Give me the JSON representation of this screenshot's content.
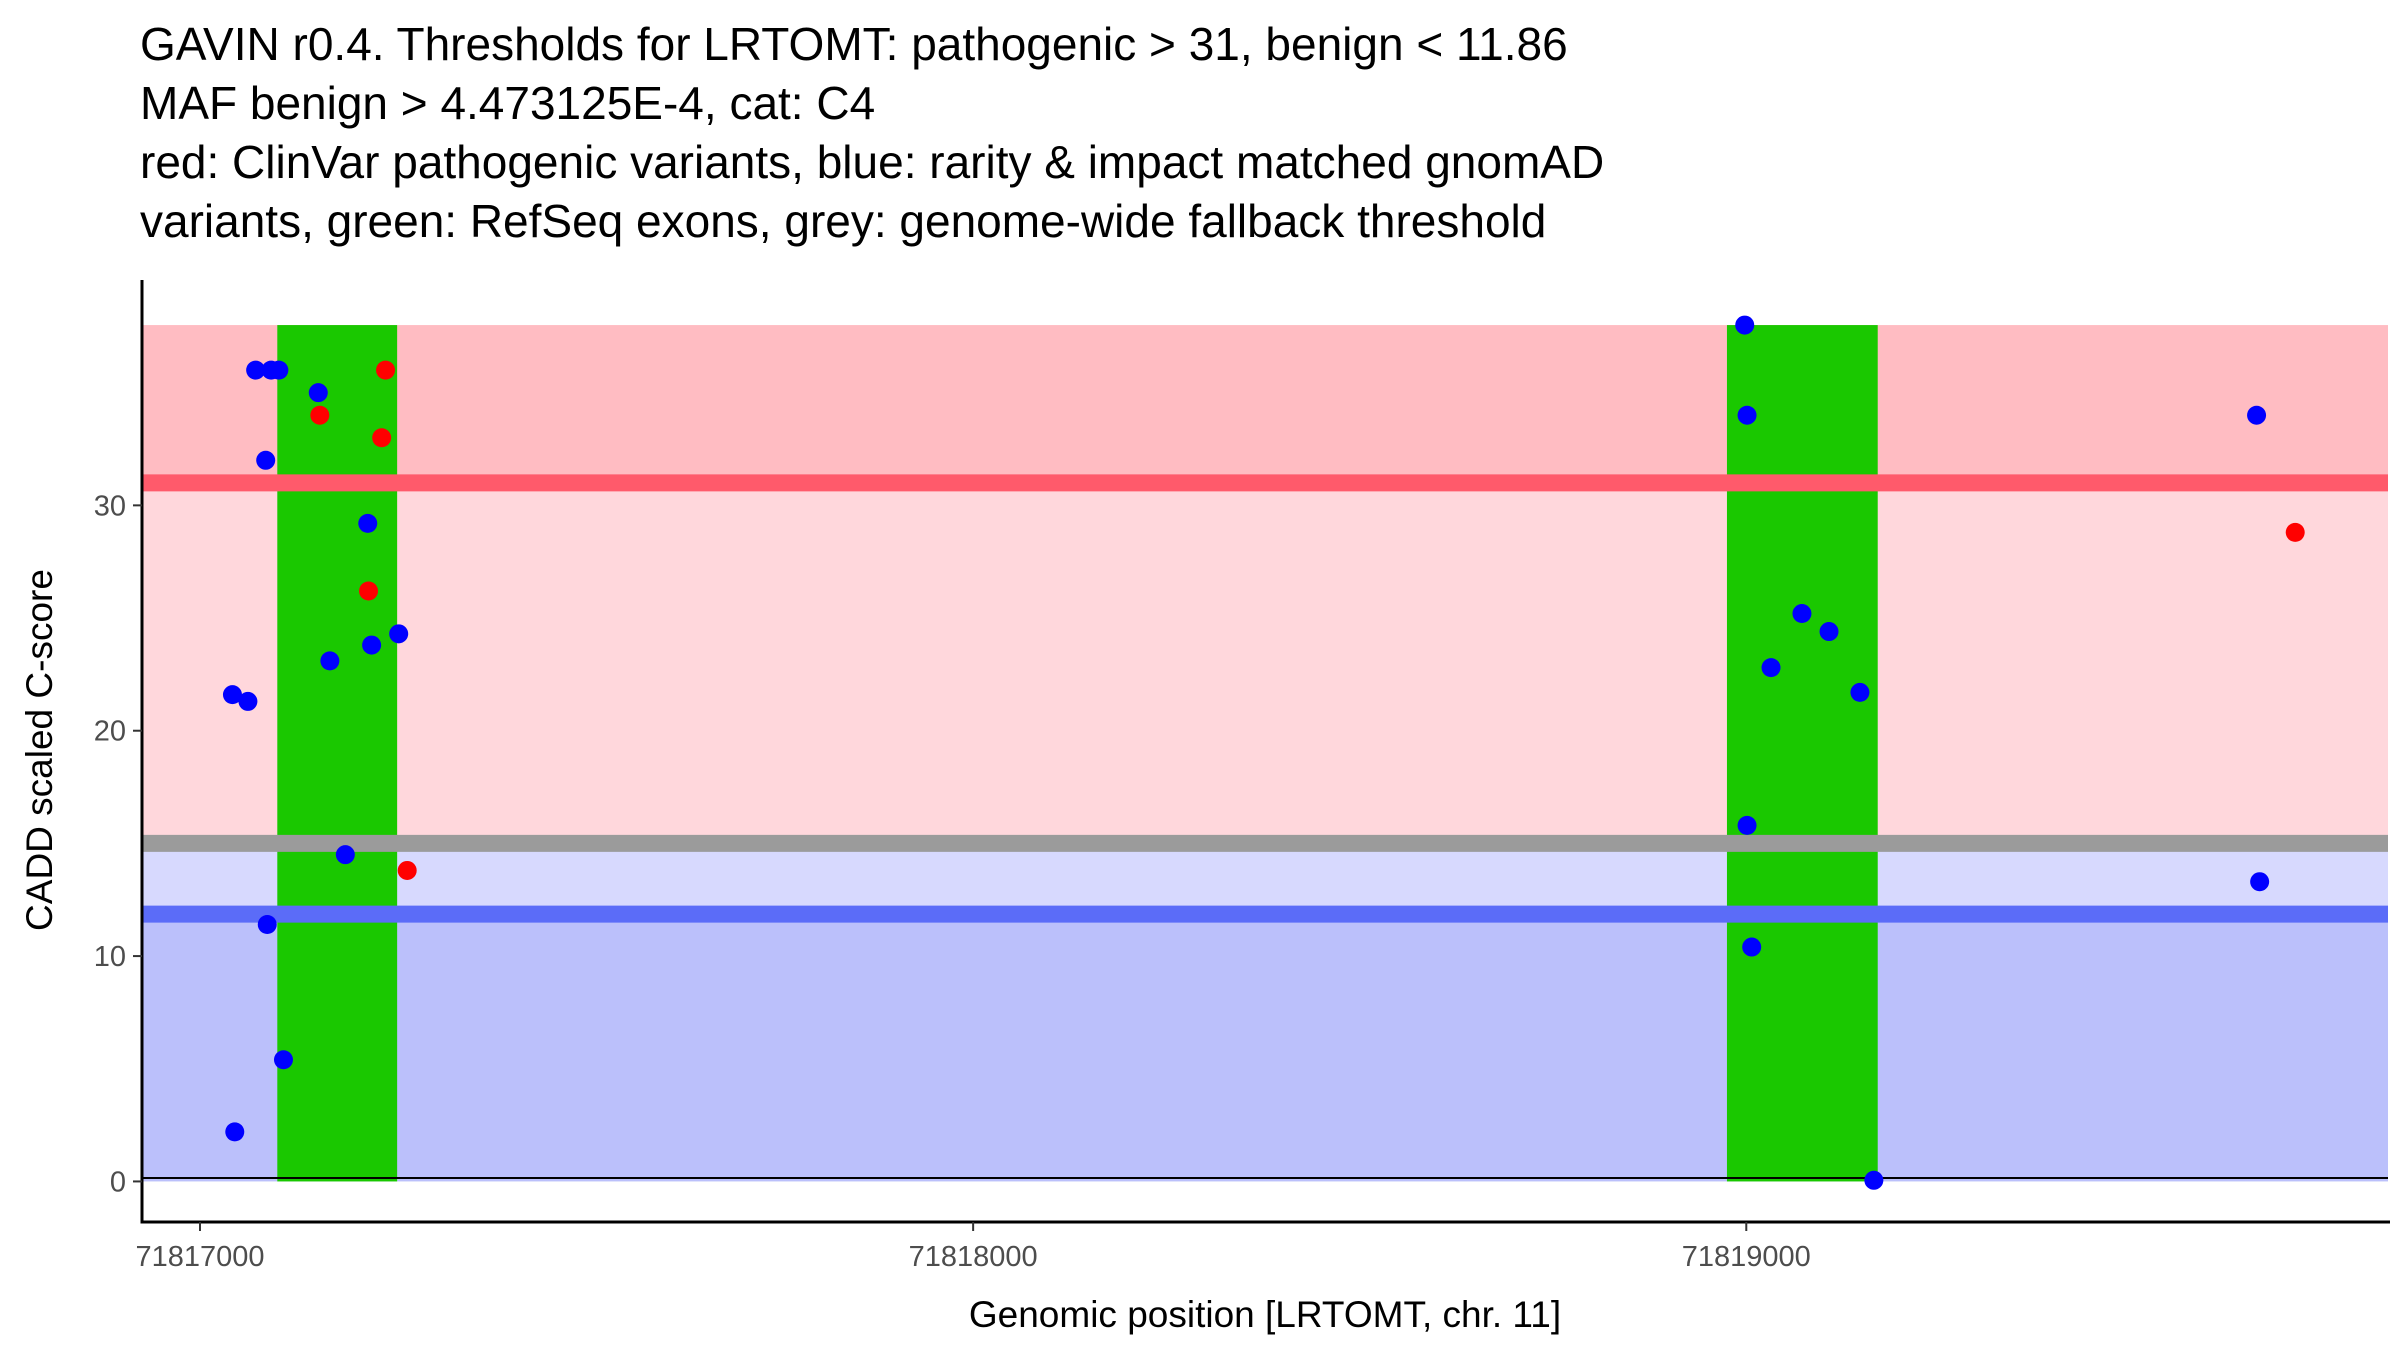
{
  "chart_data": {
    "type": "scatter",
    "title_lines": [
      "GAVIN r0.4. Thresholds for LRTOMT: pathogenic > 31, benign < 11.86",
      "MAF benign > 4.473125E-4, cat: C4",
      "red: ClinVar pathogenic variants, blue: rarity & impact matched gnomAD",
      "variants, green: RefSeq exons, grey: genome-wide fallback threshold"
    ],
    "xlabel": "Genomic position [LRTOMT, chr. 11]",
    "ylabel": "CADD scaled C-score",
    "xlim": [
      71816925,
      71819830
    ],
    "ylim": [
      -1.8,
      40.0
    ],
    "x_ticks": [
      71817000,
      71818000,
      71819000
    ],
    "x_tick_labels": [
      "71817000",
      "71818000",
      "71819000"
    ],
    "y_ticks": [
      0,
      10,
      20,
      30
    ],
    "y_tick_labels": [
      "0",
      "10",
      "20",
      "30"
    ],
    "thresholds": {
      "pathogenic": 31,
      "benign": 11.86,
      "fallback": 15,
      "max_score": 38,
      "maf_benign": "4.473125E-4",
      "category": "C4"
    },
    "shaded_regions": [
      {
        "name": "pathogenic-zone-dark",
        "y_from": 31,
        "y_to": 38,
        "color": "#ffbcc2"
      },
      {
        "name": "pathogenic-zone-light",
        "y_from": 15,
        "y_to": 31,
        "color": "#ffd7dc"
      },
      {
        "name": "vus-zone",
        "y_from": 11.86,
        "y_to": 15,
        "color": "#d7d9fe"
      },
      {
        "name": "benign-zone",
        "y_from": 0,
        "y_to": 11.86,
        "color": "#bbc0fb"
      }
    ],
    "threshold_lines": [
      {
        "name": "pathogenic-threshold-line",
        "y": 31,
        "color": "#ff5a6b"
      },
      {
        "name": "fallback-threshold-line",
        "y": 15,
        "color": "#9b9b9b"
      },
      {
        "name": "benign-threshold-line",
        "y": 11.86,
        "color": "#5b6cf8"
      }
    ],
    "exons": [
      {
        "start": 71817100,
        "end": 71817255
      },
      {
        "start": 71818975,
        "end": 71819170
      }
    ],
    "series": [
      {
        "name": "ClinVar pathogenic variants",
        "color": "#ff0000",
        "points": [
          {
            "x": 71817155,
            "y": 34.0
          },
          {
            "x": 71817240,
            "y": 36.0
          },
          {
            "x": 71817235,
            "y": 33.0
          },
          {
            "x": 71817218,
            "y": 26.2
          },
          {
            "x": 71817268,
            "y": 13.8
          },
          {
            "x": 71819710,
            "y": 28.8
          }
        ]
      },
      {
        "name": "gnomAD matched variants",
        "color": "#0000ff",
        "points": [
          {
            "x": 71817045,
            "y": 2.2
          },
          {
            "x": 71817042,
            "y": 21.6
          },
          {
            "x": 71817062,
            "y": 21.3
          },
          {
            "x": 71817072,
            "y": 36.0
          },
          {
            "x": 71817092,
            "y": 36.0
          },
          {
            "x": 71817102,
            "y": 36.0
          },
          {
            "x": 71817085,
            "y": 32.0
          },
          {
            "x": 71817087,
            "y": 11.4
          },
          {
            "x": 71817108,
            "y": 5.4
          },
          {
            "x": 71817153,
            "y": 35.0
          },
          {
            "x": 71817168,
            "y": 23.1
          },
          {
            "x": 71817188,
            "y": 14.5
          },
          {
            "x": 71817217,
            "y": 29.2
          },
          {
            "x": 71817222,
            "y": 23.8
          },
          {
            "x": 71817257,
            "y": 24.3
          },
          {
            "x": 71818998,
            "y": 38.0
          },
          {
            "x": 71819001,
            "y": 34.0
          },
          {
            "x": 71819001,
            "y": 15.8
          },
          {
            "x": 71819007,
            "y": 10.4
          },
          {
            "x": 71819032,
            "y": 22.8
          },
          {
            "x": 71819072,
            "y": 25.2
          },
          {
            "x": 71819107,
            "y": 24.4
          },
          {
            "x": 71819147,
            "y": 21.7
          },
          {
            "x": 71819165,
            "y": 0.05
          },
          {
            "x": 71819660,
            "y": 34.0
          },
          {
            "x": 71819664,
            "y": 13.3
          }
        ]
      }
    ]
  }
}
